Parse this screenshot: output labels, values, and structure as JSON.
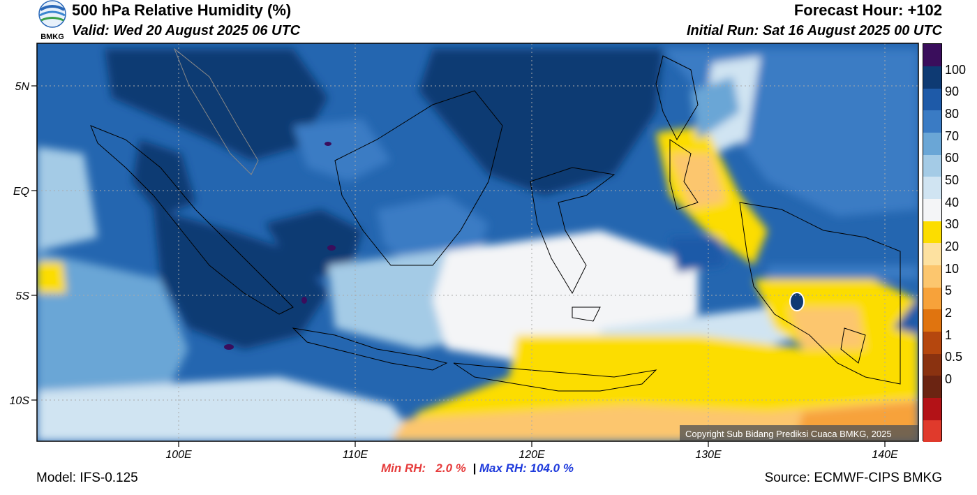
{
  "header": {
    "title": "500 hPa Relative Humidity (%)",
    "valid": "Valid: Wed 20 August 2025 06 UTC",
    "forecast_hour": "Forecast Hour: +102",
    "initial_run": "Initial Run: Sat 16 August 2025 00 UTC",
    "logo_text": "BMKG"
  },
  "map": {
    "lat_labels": [
      "5N",
      "EQ",
      "5S",
      "10S"
    ],
    "lon_labels": [
      "100E",
      "110E",
      "120E",
      "130E",
      "140E"
    ],
    "copyright": "Copyright Sub Bidang Prediksi Cuaca BMKG, 2025"
  },
  "colorbar": {
    "labels": [
      "100",
      "90",
      "80",
      "70",
      "60",
      "50",
      "40",
      "30",
      "20",
      "10",
      "5",
      "2",
      "1",
      "0.5",
      "0"
    ],
    "colors": [
      "#e03a2c",
      "#b31217",
      "#6b2412",
      "#8a3210",
      "#b5470e",
      "#e0740f",
      "#f7a23a",
      "#fcc66e",
      "#fde1a0",
      "#fcdd00",
      "#f4f5f7",
      "#d0e4f2",
      "#a4cbe6",
      "#6aa6d6",
      "#3a7bc4",
      "#1e5aa8",
      "#0e3a73",
      "#3a0e5c"
    ]
  },
  "stats": {
    "min_label": "Min RH:",
    "min_value": "2.0 %",
    "separator": "|",
    "max_label": "Max RH:",
    "max_value": "104.0 %"
  },
  "footer": {
    "model": "Model: IFS-0.125",
    "source": "Source: ECMWF-CIPS BMKG"
  }
}
